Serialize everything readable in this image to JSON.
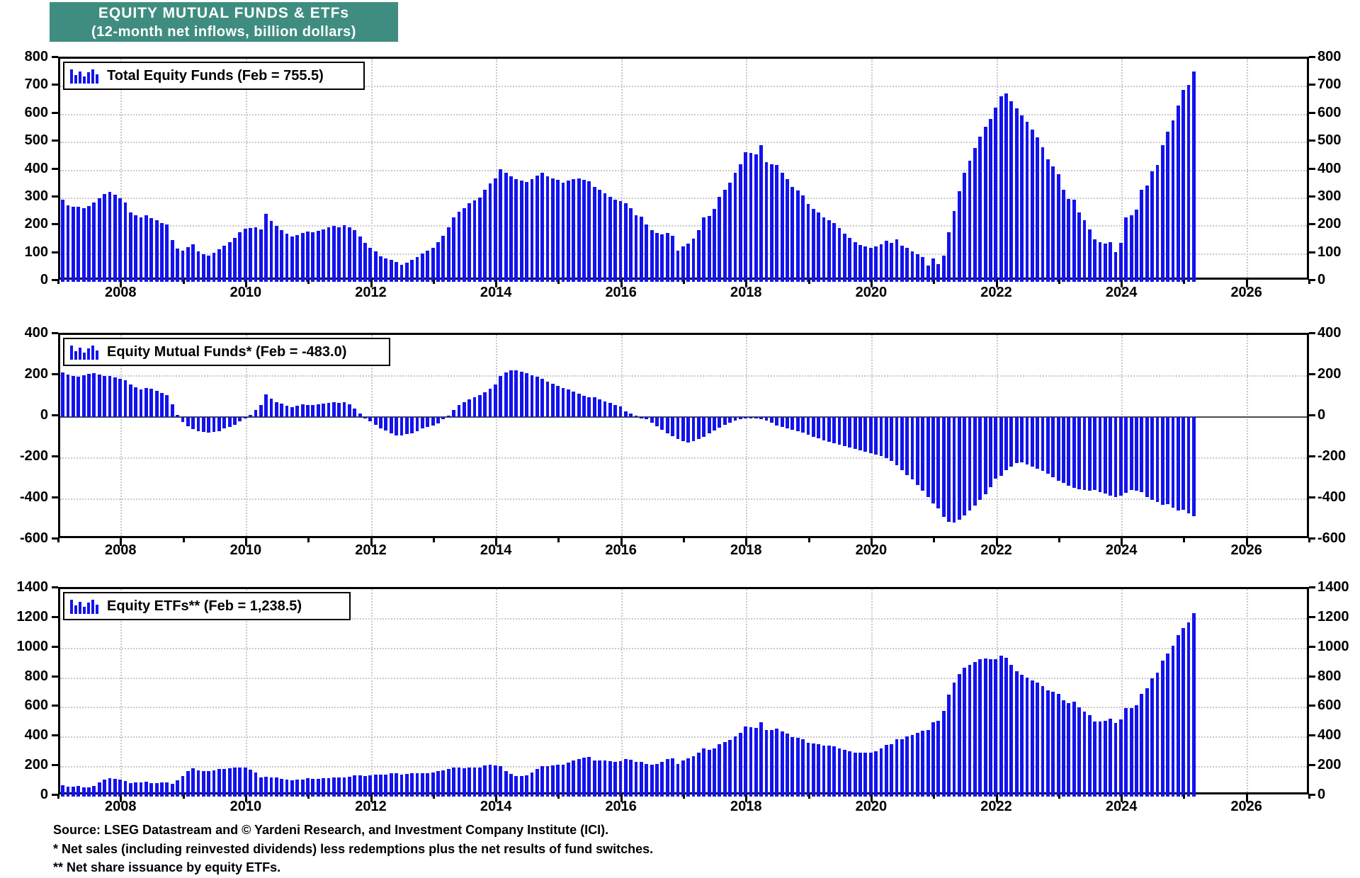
{
  "title": {
    "line1": "EQUITY MUTUAL FUNDS & ETFs",
    "line2": "(12-month net inflows, billion dollars)",
    "bg_color": "#3F8D80",
    "text_color": "#FFFFFF"
  },
  "footer": {
    "source": "Source: LSEG Datastream and © Yardeni Research, and Investment Company Institute (ICI).",
    "note1": "* Net sales (including reinvested dividends) less redemptions plus the net results of fund switches.",
    "note2": "** Net share issuance by equity ETFs."
  },
  "colors": {
    "bar": "#1313EE",
    "grid": "#C9C9C9",
    "axis": "#000000",
    "background": "#FFFFFF"
  },
  "x_axis": {
    "start_year": 2007,
    "end_year": 2027,
    "label_years": [
      2008,
      2010,
      2012,
      2014,
      2016,
      2018,
      2020,
      2022,
      2024,
      2026
    ],
    "minor_tick_every_years": 1,
    "data_start_month": "2007-01",
    "data_end_month": "2025-02"
  },
  "chart_data": [
    {
      "type": "bar",
      "name": "total-equity-funds",
      "legend": "Total Equity Funds (Feb = 755.5)",
      "latest_label": "Feb",
      "latest_value": 755.5,
      "ylim": [
        0,
        800
      ],
      "yticks": [
        0,
        100,
        200,
        300,
        400,
        500,
        600,
        700,
        800
      ],
      "baseline": 0,
      "values": [
        295,
        275,
        268,
        270,
        265,
        272,
        285,
        300,
        315,
        322,
        312,
        300,
        285,
        250,
        240,
        232,
        238,
        228,
        220,
        212,
        205,
        150,
        120,
        112,
        125,
        135,
        108,
        98,
        95,
        105,
        118,
        130,
        142,
        158,
        178,
        190,
        192,
        196,
        188,
        245,
        218,
        200,
        185,
        172,
        162,
        168,
        175,
        180,
        178,
        182,
        188,
        195,
        200,
        196,
        202,
        196,
        186,
        162,
        140,
        122,
        108,
        92,
        85,
        80,
        70,
        62,
        68,
        78,
        88,
        102,
        112,
        122,
        142,
        165,
        195,
        230,
        252,
        265,
        282,
        292,
        302,
        330,
        352,
        372,
        405,
        392,
        378,
        368,
        362,
        358,
        368,
        380,
        390,
        378,
        372,
        365,
        355,
        362,
        368,
        370,
        366,
        361,
        340,
        330,
        318,
        305,
        295,
        290,
        282,
        265,
        240,
        234,
        206,
        186,
        176,
        170,
        176,
        166,
        112,
        126,
        136,
        156,
        186,
        230,
        236,
        262,
        305,
        330,
        356,
        390,
        422,
        466,
        462,
        456,
        490,
        430,
        421,
        420,
        390,
        368,
        340,
        328,
        310,
        280,
        262,
        250,
        230,
        222,
        210,
        192,
        172,
        157,
        142,
        132,
        126,
        121,
        126,
        135,
        148,
        140,
        152,
        130,
        122,
        110,
        100,
        88,
        58,
        84,
        64,
        95,
        178,
        255,
        325,
        390,
        435,
        480,
        520,
        555,
        585,
        625,
        665,
        675,
        648,
        622,
        598,
        575,
        545,
        518,
        482,
        440,
        415,
        385,
        330,
        298,
        295,
        250,
        220,
        188,
        152,
        142,
        136,
        142,
        106,
        140,
        230,
        240,
        258,
        330,
        345,
        396,
        420,
        489,
        538,
        578,
        633,
        688,
        705,
        755.5
      ]
    },
    {
      "type": "bar",
      "name": "equity-mutual-funds",
      "legend": "Equity Mutual Funds* (Feb = -483.0)",
      "latest_label": "Feb",
      "latest_value": -483.0,
      "ylim": [
        -600,
        400
      ],
      "yticks": [
        -600,
        -400,
        -200,
        0,
        200,
        400
      ],
      "baseline": 0,
      "values": [
        218,
        206,
        200,
        198,
        202,
        210,
        215,
        206,
        200,
        199,
        193,
        186,
        178,
        160,
        146,
        136,
        140,
        137,
        128,
        118,
        108,
        62,
        10,
        -25,
        -45,
        -58,
        -68,
        -74,
        -75,
        -72,
        -68,
        -55,
        -48,
        -38,
        -20,
        -5,
        10,
        35,
        60,
        112,
        88,
        72,
        65,
        55,
        50,
        55,
        62,
        58,
        60,
        62,
        66,
        70,
        72,
        68,
        74,
        62,
        42,
        18,
        0,
        -22,
        -38,
        -55,
        -65,
        -78,
        -90,
        -88,
        -84,
        -78,
        -68,
        -55,
        -48,
        -42,
        -30,
        -12,
        8,
        35,
        58,
        72,
        85,
        98,
        108,
        120,
        138,
        160,
        200,
        218,
        226,
        228,
        222,
        214,
        205,
        195,
        185,
        172,
        162,
        152,
        142,
        135,
        125,
        115,
        105,
        95,
        95,
        85,
        75,
        68,
        60,
        52,
        28,
        18,
        8,
        0,
        -12,
        -28,
        -45,
        -62,
        -78,
        -92,
        -108,
        -118,
        -124,
        -118,
        -108,
        -95,
        -80,
        -65,
        -50,
        -38,
        -28,
        -18,
        -10,
        -5,
        -4,
        -6,
        -10,
        -18,
        -28,
        -40,
        -48,
        -55,
        -62,
        -68,
        -75,
        -85,
        -95,
        -105,
        -115,
        -122,
        -128,
        -135,
        -142,
        -148,
        -155,
        -162,
        -168,
        -175,
        -182,
        -190,
        -200,
        -215,
        -235,
        -258,
        -282,
        -305,
        -330,
        -358,
        -390,
        -420,
        -445,
        -485,
        -510,
        -515,
        -500,
        -480,
        -455,
        -430,
        -405,
        -375,
        -340,
        -300,
        -285,
        -260,
        -240,
        -225,
        -222,
        -230,
        -240,
        -250,
        -262,
        -275,
        -292,
        -310,
        -322,
        -335,
        -345,
        -350,
        -355,
        -360,
        -356,
        -364,
        -374,
        -384,
        -390,
        -382,
        -368,
        -355,
        -360,
        -365,
        -388,
        -402,
        -415,
        -428,
        -425,
        -440,
        -455,
        -450,
        -470,
        -483.0
      ]
    },
    {
      "type": "bar",
      "name": "equity-etfs",
      "legend": "Equity ETFs**  (Feb = 1,238.5)",
      "latest_label": "Feb",
      "latest_value": 1238.5,
      "ylim": [
        0,
        1400
      ],
      "yticks": [
        0,
        200,
        400,
        600,
        800,
        1000,
        1200,
        1400
      ],
      "baseline": 0,
      "values": [
        77,
        69,
        68,
        72,
        63,
        62,
        70,
        94,
        115,
        123,
        119,
        114,
        107,
        90,
        94,
        96,
        98,
        91,
        92,
        94,
        97,
        88,
        110,
        137,
        170,
        193,
        176,
        172,
        170,
        177,
        186,
        185,
        190,
        196,
        198,
        195,
        182,
        161,
        128,
        133,
        130,
        128,
        120,
        117,
        112,
        113,
        113,
        122,
        118,
        120,
        122,
        125,
        128,
        128,
        128,
        134,
        144,
        144,
        140,
        144,
        146,
        147,
        150,
        158,
        160,
        150,
        152,
        156,
        156,
        157,
        160,
        164,
        172,
        177,
        187,
        195,
        194,
        193,
        197,
        194,
        194,
        210,
        214,
        212,
        205,
        174,
        152,
        140,
        140,
        144,
        163,
        185,
        205,
        206,
        210,
        213,
        213,
        227,
        243,
        255,
        261,
        266,
        245,
        245,
        243,
        237,
        235,
        238,
        254,
        247,
        232,
        234,
        218,
        214,
        221,
        232,
        254,
        258,
        220,
        244,
        260,
        274,
        294,
        325,
        316,
        327,
        355,
        368,
        384,
        408,
        432,
        471,
        466,
        462,
        500,
        448,
        449,
        460,
        438,
        423,
        402,
        396,
        385,
        365,
        357,
        355,
        345,
        344,
        338,
        327,
        314,
        305,
        297,
        294,
        294,
        296,
        308,
        325,
        348,
        355,
        387,
        388,
        404,
        415,
        430,
        446,
        448,
        504,
        509,
        580,
        688,
        770,
        825,
        870,
        890,
        910,
        925,
        930,
        925,
        925,
        950,
        935,
        888,
        847,
        820,
        805,
        785,
        768,
        744,
        715,
        707,
        695,
        652,
        633,
        640,
        600,
        575,
        548,
        508,
        506,
        510,
        526,
        496,
        522,
        598,
        595,
        618,
        695,
        733,
        798,
        835,
        917,
        963,
        1018,
        1088,
        1138,
        1175,
        1238.5
      ]
    }
  ]
}
